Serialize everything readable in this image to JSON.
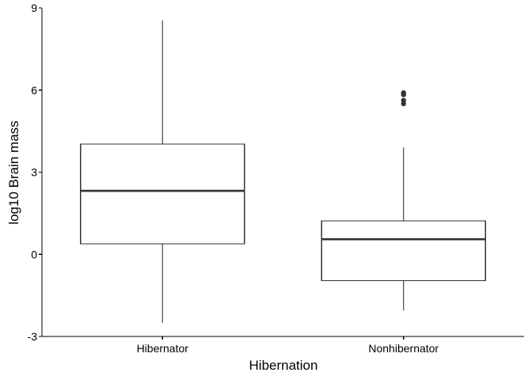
{
  "chart_data": {
    "type": "boxplot",
    "xlabel": "Hibernation",
    "ylabel": "log10 Brain mass",
    "ylim": [
      -3,
      9
    ],
    "yticks": [
      -3,
      0,
      3,
      6,
      9
    ],
    "ytick_labels": [
      "-3",
      "0",
      "3",
      "6",
      "9"
    ],
    "categories": [
      "Hibernator",
      "Nonhibernator"
    ],
    "boxes": [
      {
        "category": "Hibernator",
        "whisker_low": -2.5,
        "q1": 0.38,
        "median": 2.32,
        "q3": 4.03,
        "whisker_high": 8.55,
        "outliers": []
      },
      {
        "category": "Nonhibernator",
        "whisker_low": -2.05,
        "q1": -0.96,
        "median": 0.55,
        "q3": 1.22,
        "whisker_high": 3.9,
        "outliers": [
          5.5,
          5.62,
          5.83,
          5.9
        ]
      }
    ],
    "grid": false,
    "legend": "none",
    "colors": {
      "box_fill": "#ffffff",
      "box_stroke": "#333333",
      "outlier": "#333333",
      "axis": "#000000"
    }
  }
}
